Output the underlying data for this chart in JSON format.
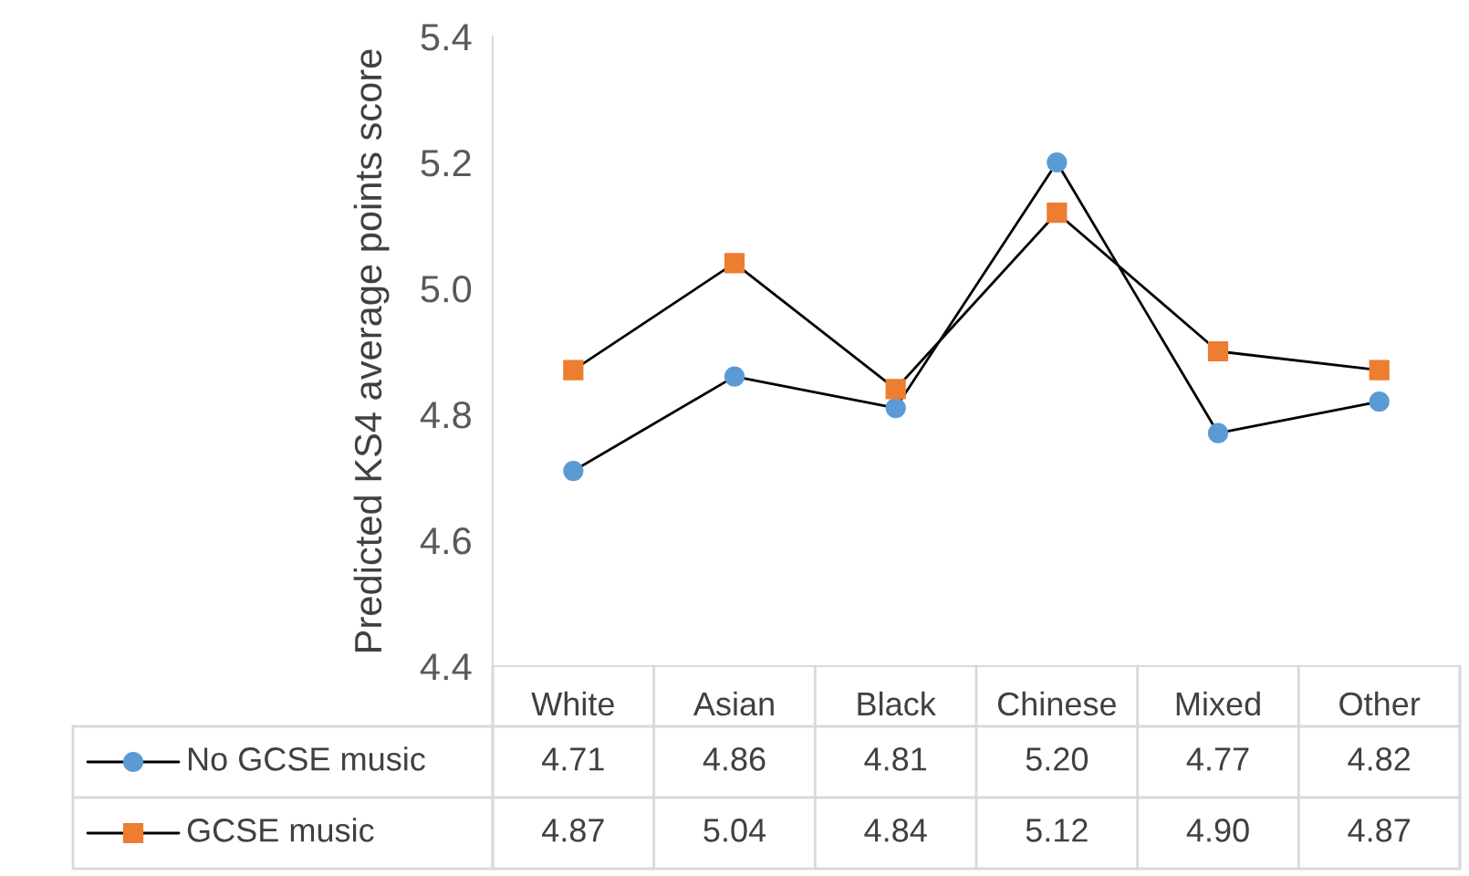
{
  "chart_data": {
    "type": "line",
    "ylabel": "Predicted KS4 average points score",
    "categories": [
      "White",
      "Asian",
      "Black",
      "Chinese",
      "Mixed",
      "Other"
    ],
    "series": [
      {
        "name": "No GCSE music",
        "color": "#5b9bd5",
        "marker": "circle",
        "values": [
          4.71,
          4.86,
          4.81,
          5.2,
          4.77,
          4.82
        ],
        "value_labels": [
          "4.71",
          "4.86",
          "4.81",
          "5.20",
          "4.77",
          "4.82"
        ]
      },
      {
        "name": "GCSE music",
        "color": "#ed7d31",
        "marker": "square",
        "values": [
          4.87,
          5.04,
          4.84,
          5.12,
          4.9,
          4.87
        ],
        "value_labels": [
          "4.87",
          "5.04",
          "4.84",
          "5.12",
          "4.90",
          "4.87"
        ]
      }
    ],
    "ylim": [
      4.4,
      5.4
    ],
    "yticks": [
      {
        "value": 4.4,
        "label": "4.4"
      },
      {
        "value": 4.6,
        "label": "4.6"
      },
      {
        "value": 4.8,
        "label": "4.8"
      },
      {
        "value": 5.0,
        "label": "5.0"
      },
      {
        "value": 5.2,
        "label": "5.2"
      },
      {
        "value": 5.4,
        "label": "5.4"
      }
    ],
    "grid": false,
    "legend": "bottom"
  }
}
